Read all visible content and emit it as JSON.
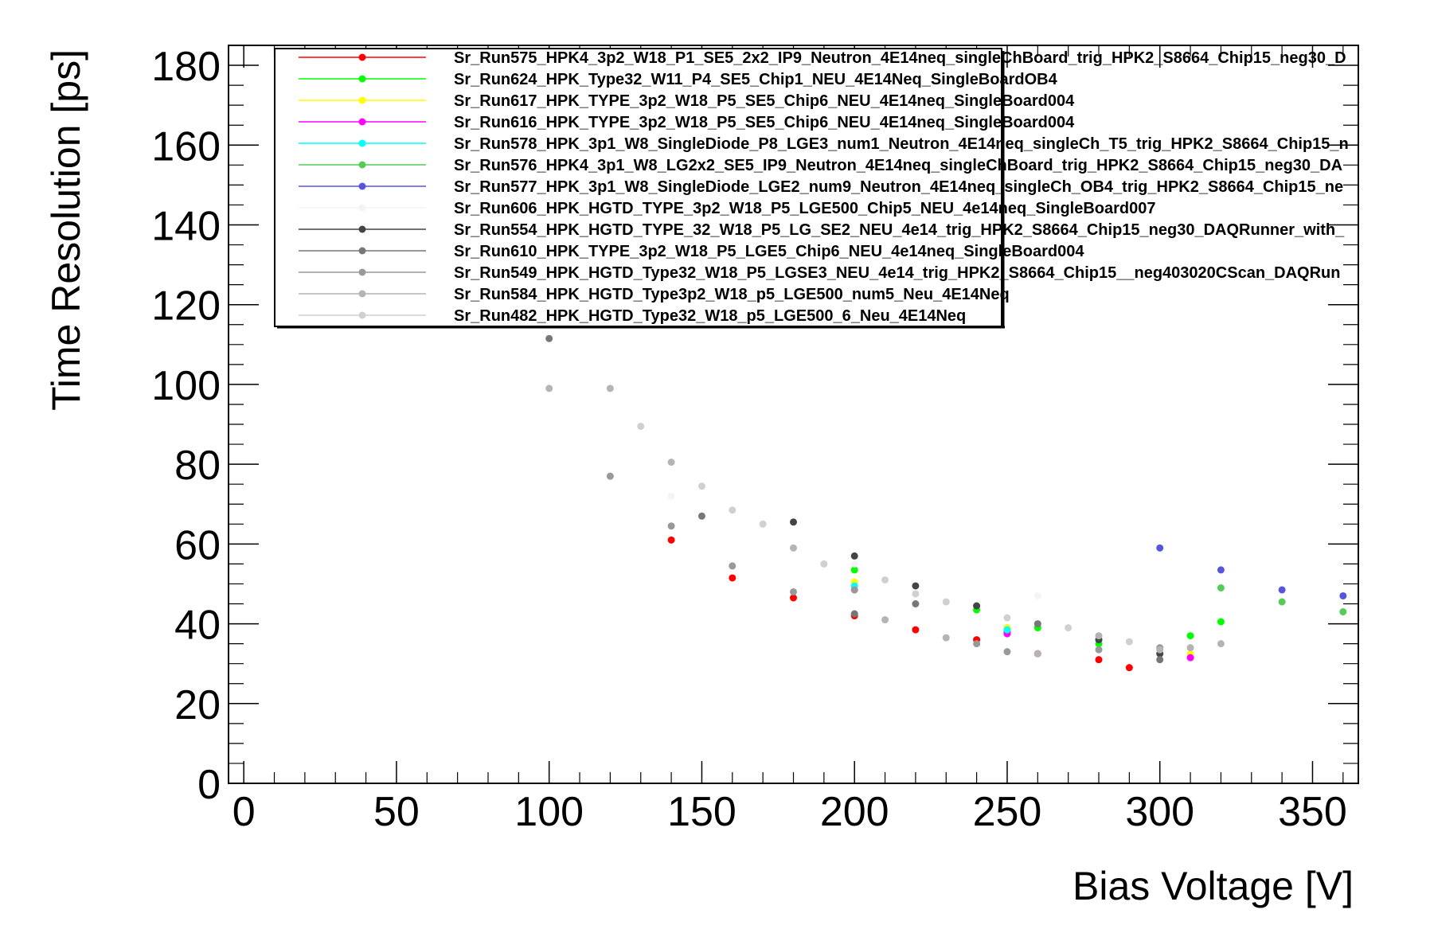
{
  "chart_data": {
    "type": "scatter",
    "title": "",
    "xlabel": "Bias Voltage [V]",
    "ylabel": "Time Resolution [ps]",
    "xlim": [
      -5,
      365
    ],
    "ylim": [
      0,
      185
    ],
    "x_ticks": [
      "0",
      "50",
      "100",
      "150",
      "200",
      "250",
      "300",
      "350"
    ],
    "y_ticks": [
      "0",
      "20",
      "40",
      "60",
      "80",
      "100",
      "120",
      "140",
      "160",
      "180"
    ],
    "grid": false,
    "legend_position": "top-left",
    "series": [
      {
        "name": "Sr_Run575_HPK4_3p2_W18_P1_SE5_2x2_IP9_Neutron_4E14neq_singleChBoard_trig_HPK2_S8664_Chip15_neg30_D",
        "color": "#ff0000",
        "x": [
          140,
          160,
          180,
          200,
          220,
          240,
          250,
          260,
          280,
          290
        ],
        "y": [
          61,
          51.5,
          46.5,
          42,
          38.5,
          36,
          38,
          32.5,
          31,
          29
        ]
      },
      {
        "name": "Sr_Run624_HPK_Type32_W11_P4_SE5_Chip1_NEU_4E14Neq_SingleBoardOB4",
        "color": "#00ff00",
        "x": [
          200,
          240,
          250,
          260,
          280,
          310,
          320
        ],
        "y": [
          53.5,
          43.5,
          39,
          39,
          35,
          37,
          40.5
        ]
      },
      {
        "name": "Sr_Run617_HPK_TYPE_3p2_W18_P5_SE5_Chip6_NEU_4E14neq_SingleBoard004",
        "color": "#ffff00",
        "x": [
          200,
          250,
          310
        ],
        "y": [
          50.5,
          39,
          32.5
        ]
      },
      {
        "name": "Sr_Run616_HPK_TYPE_3p2_W18_P5_SE5_Chip6_NEU_4E14neq_SingleBoard004",
        "color": "#ff00ff",
        "x": [
          200,
          250,
          310
        ],
        "y": [
          48.5,
          37.5,
          31.5
        ]
      },
      {
        "name": "Sr_Run578_HPK_3p1_W8_SingleDiode_P8_LGE3_num1_Neutron_4E14neq_singleCh_T5_trig_HPK2_S8664_Chip15_n",
        "color": "#00ffff",
        "x": [
          200,
          250
        ],
        "y": [
          49.5,
          38.5
        ]
      },
      {
        "name": "Sr_Run576_HPK4_3p1_W8_LG2x2_SE5_IP9_Neutron_4E14neq_singleChBoard_trig_HPK2_S8664_Chip15_neg30_DA",
        "color": "#55cc55",
        "x": [
          320,
          340,
          360
        ],
        "y": [
          49,
          45.5,
          43
        ]
      },
      {
        "name": "Sr_Run577_HPK_3p1_W8_SingleDiode_LGE2_num9_Neutron_4E14neq_singleCh_OB4_trig_HPK2_S8664_Chip15_ne",
        "color": "#5555dd",
        "x": [
          300,
          320,
          340,
          360
        ],
        "y": [
          59,
          53.5,
          48.5,
          47
        ]
      },
      {
        "name": "Sr_Run606_HPK_HGTD_TYPE_3p2_W18_P5_LGE500_Chip5_NEU_4e14neq_SingleBoard007",
        "color": "#f4f4f4",
        "x": [
          140,
          200,
          260
        ],
        "y": [
          72,
          55,
          47
        ]
      },
      {
        "name": "Sr_Run554_HPK_HGTD_TYPE_32_W18_P5_LG_SE2_NEU_4e14_trig_HPK2_S8664_Chip15_neg30_DAQRunner_with_",
        "color": "#444444",
        "x": [
          180,
          200,
          220,
          240,
          280,
          300
        ],
        "y": [
          65.5,
          57,
          49.5,
          44.5,
          36,
          32.5
        ]
      },
      {
        "name": "Sr_Run610_HPK_TYPE_3p2_W18_P5_LGE5_Chip6_NEU_4e14neq_SingleBoard004",
        "color": "#777777",
        "x": [
          100,
          150,
          200,
          220,
          260,
          300
        ],
        "y": [
          111.5,
          67,
          42.5,
          45,
          40,
          31
        ]
      },
      {
        "name": "Sr_Run549_HPK_HGTD_Type32_W18_P5_LGSE3_NEU_4e14_trig_HPK2_S8664_Chip15__neg403020CScan_DAQRun",
        "color": "#999999",
        "x": [
          120,
          140,
          160,
          180,
          200,
          240,
          250,
          280,
          300
        ],
        "y": [
          77,
          64.5,
          54.5,
          48,
          48.5,
          35,
          33,
          33.5,
          34
        ]
      },
      {
        "name": "Sr_Run584_HPK_HGTD_Type3p2_W18_p5_LGE500_num5_Neu_4E14Neq",
        "color": "#b4b4b4",
        "x": [
          100,
          120,
          140,
          180,
          210,
          230,
          260,
          280,
          300,
          310,
          320
        ],
        "y": [
          99,
          99,
          80.5,
          59,
          41,
          36.5,
          32.5,
          37,
          33.5,
          34,
          35
        ]
      },
      {
        "name": "Sr_Run482_HPK_HGTD_Type32_W18_p5_LGE500_6_Neu_4E14Neq",
        "color": "#d0d0d0",
        "x": [
          130,
          150,
          160,
          170,
          190,
          210,
          220,
          230,
          250,
          270,
          290
        ],
        "y": [
          89.5,
          74.5,
          68.5,
          65,
          55,
          51,
          47.5,
          45.5,
          41.5,
          39,
          35.5
        ]
      }
    ]
  }
}
